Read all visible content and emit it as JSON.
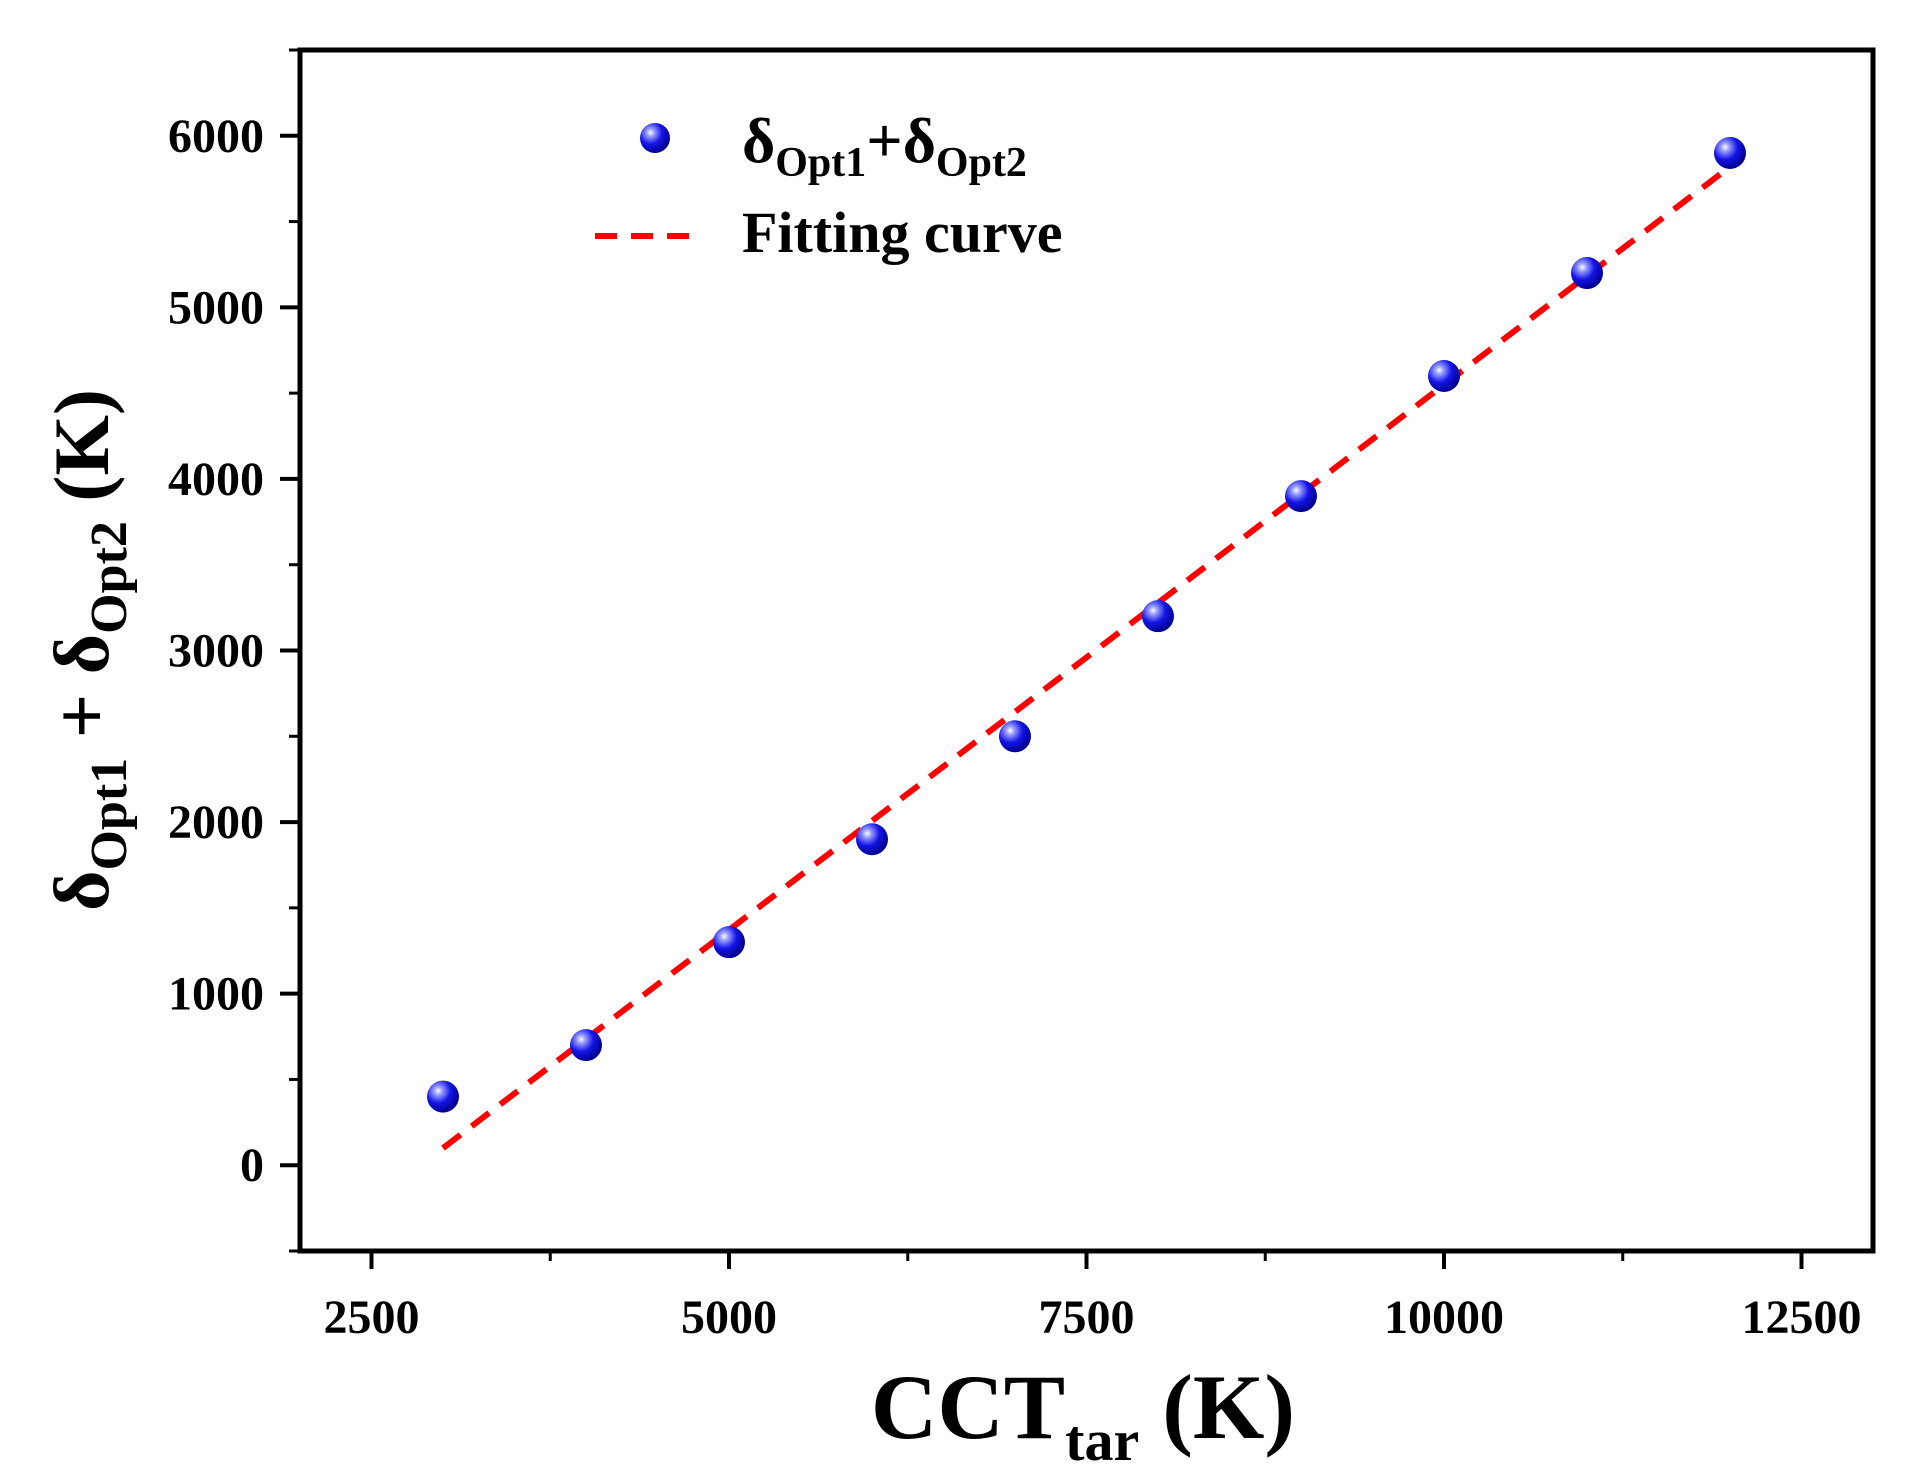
{
  "chart_data": {
    "type": "scatter",
    "xlabel": {
      "main": "CCT",
      "sub": "tar",
      "unit": " (K)"
    },
    "ylabel": {
      "delta1": "δ",
      "sub1": "Opt1",
      "plus": " + ",
      "delta2": "δ",
      "sub2": "Opt2",
      "unit": " (K)"
    },
    "xlim": [
      2000,
      13000
    ],
    "ylim": [
      -500,
      6500
    ],
    "xticks": [
      2500,
      5000,
      7500,
      10000,
      12500
    ],
    "yticks": [
      0,
      1000,
      2000,
      3000,
      4000,
      5000,
      6000
    ],
    "series": [
      {
        "name": "δOpt1+δOpt2",
        "legend": {
          "delta1": "δ",
          "sub1": "Opt1",
          "plus": "+",
          "delta2": "δ",
          "sub2": "Opt2"
        },
        "kind": "scatter",
        "color": "#1010e0",
        "x": [
          3000,
          4000,
          5000,
          6000,
          7000,
          8000,
          9000,
          10000,
          11000,
          12000
        ],
        "y": [
          400,
          700,
          1300,
          1900,
          2500,
          3200,
          3900,
          4600,
          5200,
          5900
        ]
      },
      {
        "name": "Fitting curve",
        "kind": "line",
        "style": "dashed",
        "color": "#ff0000",
        "x": [
          3000,
          12000
        ],
        "y": [
          100,
          5820
        ]
      }
    ]
  }
}
